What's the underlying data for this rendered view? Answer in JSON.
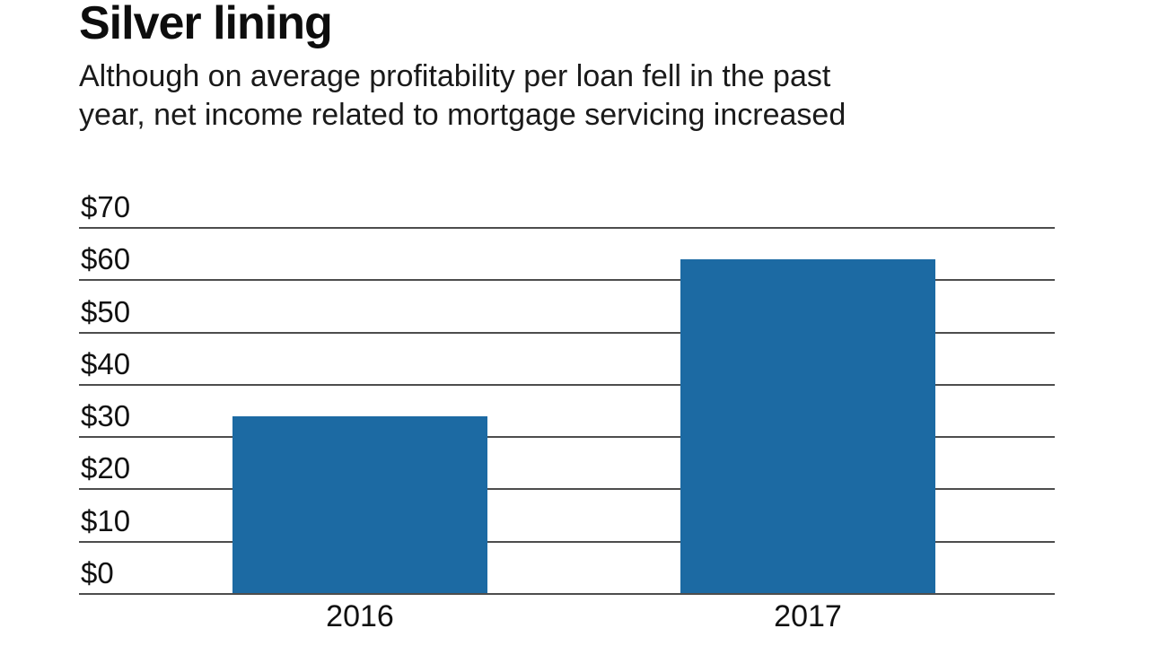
{
  "header": {
    "title": "Silver lining",
    "subtitle_lines": [
      "Although on average profitability per loan fell in the past",
      "year, net income related to mortgage servicing increased"
    ]
  },
  "chart_data": {
    "type": "bar",
    "title": "Silver lining",
    "subtitle": "Although on average profitability per loan fell in the past year, net income related to mortgage servicing increased",
    "categories": [
      "2016",
      "2017"
    ],
    "values": [
      34,
      64
    ],
    "xlabel": "",
    "ylabel": "",
    "ylim": [
      0,
      70
    ],
    "ytick_interval": 10,
    "yticks": [
      70,
      60,
      50,
      40,
      30,
      20,
      10,
      0
    ],
    "ytick_labels": [
      "$70",
      "$60",
      "$50",
      "$40",
      "$30",
      "$20",
      "$10",
      "$0"
    ],
    "grid": true,
    "legend": false,
    "bar_color": "#1c6aa3",
    "grid_color": "#4d4d4d",
    "text_color": "#111111"
  }
}
